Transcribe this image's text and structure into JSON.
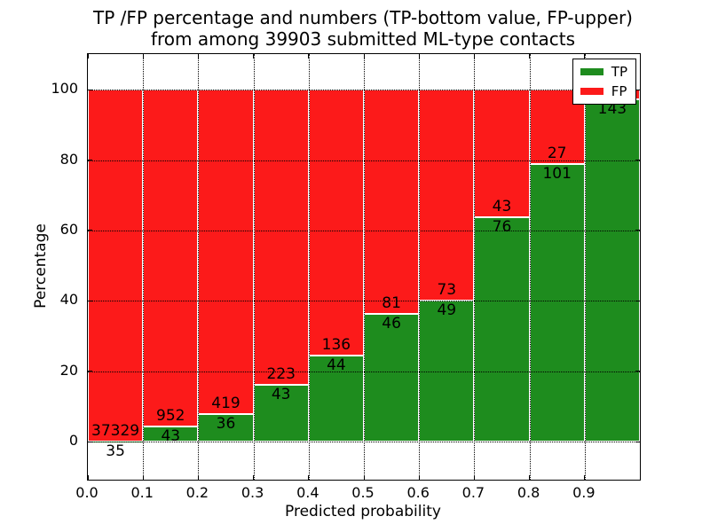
{
  "title": {
    "line1": "TP /FP percentage and numbers (TP-bottom value, FP-upper)",
    "line2": "from among 39903 submitted ML-type contacts"
  },
  "axes": {
    "xlabel": "Predicted probability",
    "ylabel": "Percentage"
  },
  "legend": {
    "position": "upper right",
    "entries": [
      {
        "label": "TP",
        "color": "#1e8c1e"
      },
      {
        "label": "FP",
        "color": "#fc1a1a"
      }
    ]
  },
  "chart_data": {
    "type": "bar",
    "variant": "stacked-100-percent-histogram",
    "title": "TP /FP percentage and numbers (TP-bottom value, FP-upper) from among 39903 submitted ML-type contacts",
    "xlabel": "Predicted probability",
    "ylabel": "Percentage",
    "x_bin_edges": [
      0.0,
      0.1,
      0.2,
      0.3,
      0.4,
      0.5,
      0.6,
      0.7,
      0.8,
      0.9,
      1.0
    ],
    "categories": [
      "0.0-0.1",
      "0.1-0.2",
      "0.2-0.3",
      "0.3-0.4",
      "0.4-0.5",
      "0.5-0.6",
      "0.6-0.7",
      "0.7-0.8",
      "0.8-0.9",
      "0.9-1.0"
    ],
    "series": [
      {
        "name": "TP",
        "color": "#1e8c1e",
        "counts": [
          35,
          43,
          36,
          43,
          44,
          46,
          49,
          76,
          101,
          143
        ],
        "percent": [
          0.09,
          4.32,
          7.91,
          16.17,
          24.44,
          36.22,
          40.16,
          63.87,
          78.91,
          97.3
        ]
      },
      {
        "name": "FP",
        "color": "#fc1a1a",
        "counts": [
          37329,
          952,
          419,
          223,
          136,
          81,
          73,
          43,
          27,
          null
        ],
        "percent": [
          99.91,
          95.68,
          92.09,
          83.83,
          75.56,
          63.78,
          59.84,
          36.13,
          21.09,
          2.7
        ]
      }
    ],
    "fp_count_last_bin_label_visible": false,
    "xticks": {
      "values": [
        0,
        0.1,
        0.2,
        0.3,
        0.4,
        0.5,
        0.6,
        0.7,
        0.8,
        0.9
      ],
      "labels": [
        "0.0",
        "0.1",
        "0.2",
        "0.3",
        "0.4",
        "0.5",
        "0.6",
        "0.7",
        "0.8",
        "0.9"
      ]
    },
    "yticks": {
      "values": [
        0,
        20,
        40,
        60,
        80,
        100
      ],
      "labels": [
        "0",
        "20",
        "40",
        "60",
        "80",
        "100"
      ]
    },
    "xlim": [
      0,
      1.0
    ],
    "ylim": [
      -10.8,
      110.1
    ],
    "grid": true,
    "grid_linestyle": "dotted",
    "legend_position": "upper right",
    "bar_edge_color": "#ffffff",
    "background_color": "#ffffff"
  }
}
